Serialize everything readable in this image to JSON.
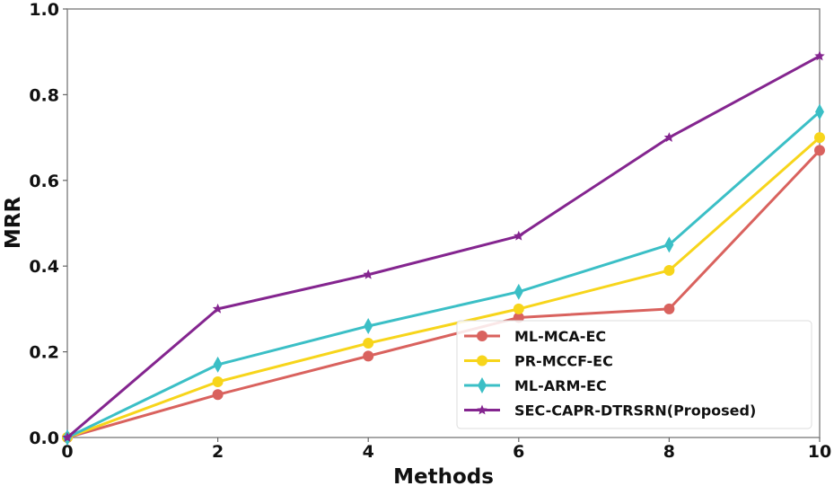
{
  "chart_data": {
    "type": "line",
    "title": "",
    "xlabel": "Methods",
    "ylabel": "MRR",
    "xlim": [
      0,
      10
    ],
    "ylim": [
      0,
      1.0
    ],
    "xticks": [
      0,
      2,
      4,
      6,
      8,
      10
    ],
    "yticks": [
      0.0,
      0.2,
      0.4,
      0.6,
      0.8,
      1.0
    ],
    "xtick_labels": [
      "0",
      "2",
      "4",
      "6",
      "8",
      "10"
    ],
    "ytick_labels": [
      "0.0",
      "0.2",
      "0.4",
      "0.6",
      "0.8",
      "1.0"
    ],
    "grid": false,
    "legend_position": "bottom-right",
    "x": [
      0,
      2,
      4,
      6,
      8,
      10
    ],
    "series": [
      {
        "name": "ML-MCA-EC",
        "color": "#d9625e",
        "marker": "circle",
        "values": [
          0.0,
          0.1,
          0.19,
          0.28,
          0.3,
          0.67
        ]
      },
      {
        "name": "PR-MCCF-EC",
        "color": "#f7d51b",
        "marker": "circle",
        "values": [
          0.0,
          0.13,
          0.22,
          0.3,
          0.39,
          0.7
        ]
      },
      {
        "name": "ML-ARM-EC",
        "color": "#3bbfc6",
        "marker": "diamond",
        "values": [
          0.0,
          0.17,
          0.26,
          0.34,
          0.45,
          0.76
        ]
      },
      {
        "name": "SEC-CAPR-DTRSRN(Proposed)",
        "color": "#84258f",
        "marker": "star",
        "values": [
          0.0,
          0.3,
          0.38,
          0.47,
          0.7,
          0.89
        ]
      }
    ]
  }
}
